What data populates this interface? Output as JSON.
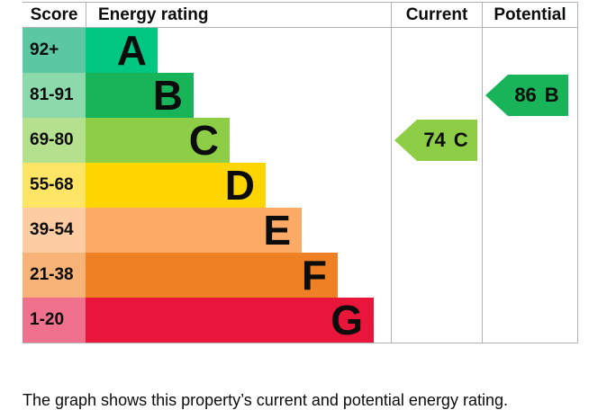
{
  "colors": {
    "border": "#b1b4b6",
    "text": "#0b0c0c",
    "background": "#ffffff"
  },
  "table": {
    "headers": {
      "score": "Score",
      "energy_rating": "Energy rating",
      "current": "Current",
      "potential": "Potential"
    }
  },
  "chart_data": {
    "type": "bar",
    "description": "EPC energy efficiency rating chart with current and potential rating arrows",
    "bands": [
      {
        "letter": "A",
        "score_range": "92+",
        "bar_color": "#00c781",
        "score_cell_color": "#5cc7a3"
      },
      {
        "letter": "B",
        "score_range": "81-91",
        "bar_color": "#19b459",
        "score_cell_color": "#8cd9ac"
      },
      {
        "letter": "C",
        "score_range": "69-80",
        "bar_color": "#8dce46",
        "score_cell_color": "#b5e08e"
      },
      {
        "letter": "D",
        "score_range": "55-68",
        "bar_color": "#ffd500",
        "score_cell_color": "#ffe566"
      },
      {
        "letter": "E",
        "score_range": "39-54",
        "bar_color": "#fcaa65",
        "score_cell_color": "#fdcca3"
      },
      {
        "letter": "F",
        "score_range": "21-38",
        "bar_color": "#ef8023",
        "score_cell_color": "#f6b277"
      },
      {
        "letter": "G",
        "score_range": "1-20",
        "bar_color": "#e9153b",
        "score_cell_color": "#f0718d"
      }
    ],
    "current": {
      "value": "74",
      "band": "C",
      "arrow_color": "#8dce46"
    },
    "potential": {
      "value": "86",
      "band": "B",
      "arrow_color": "#19b459"
    }
  },
  "caption": "The graph shows this property’s current and potential energy rating."
}
